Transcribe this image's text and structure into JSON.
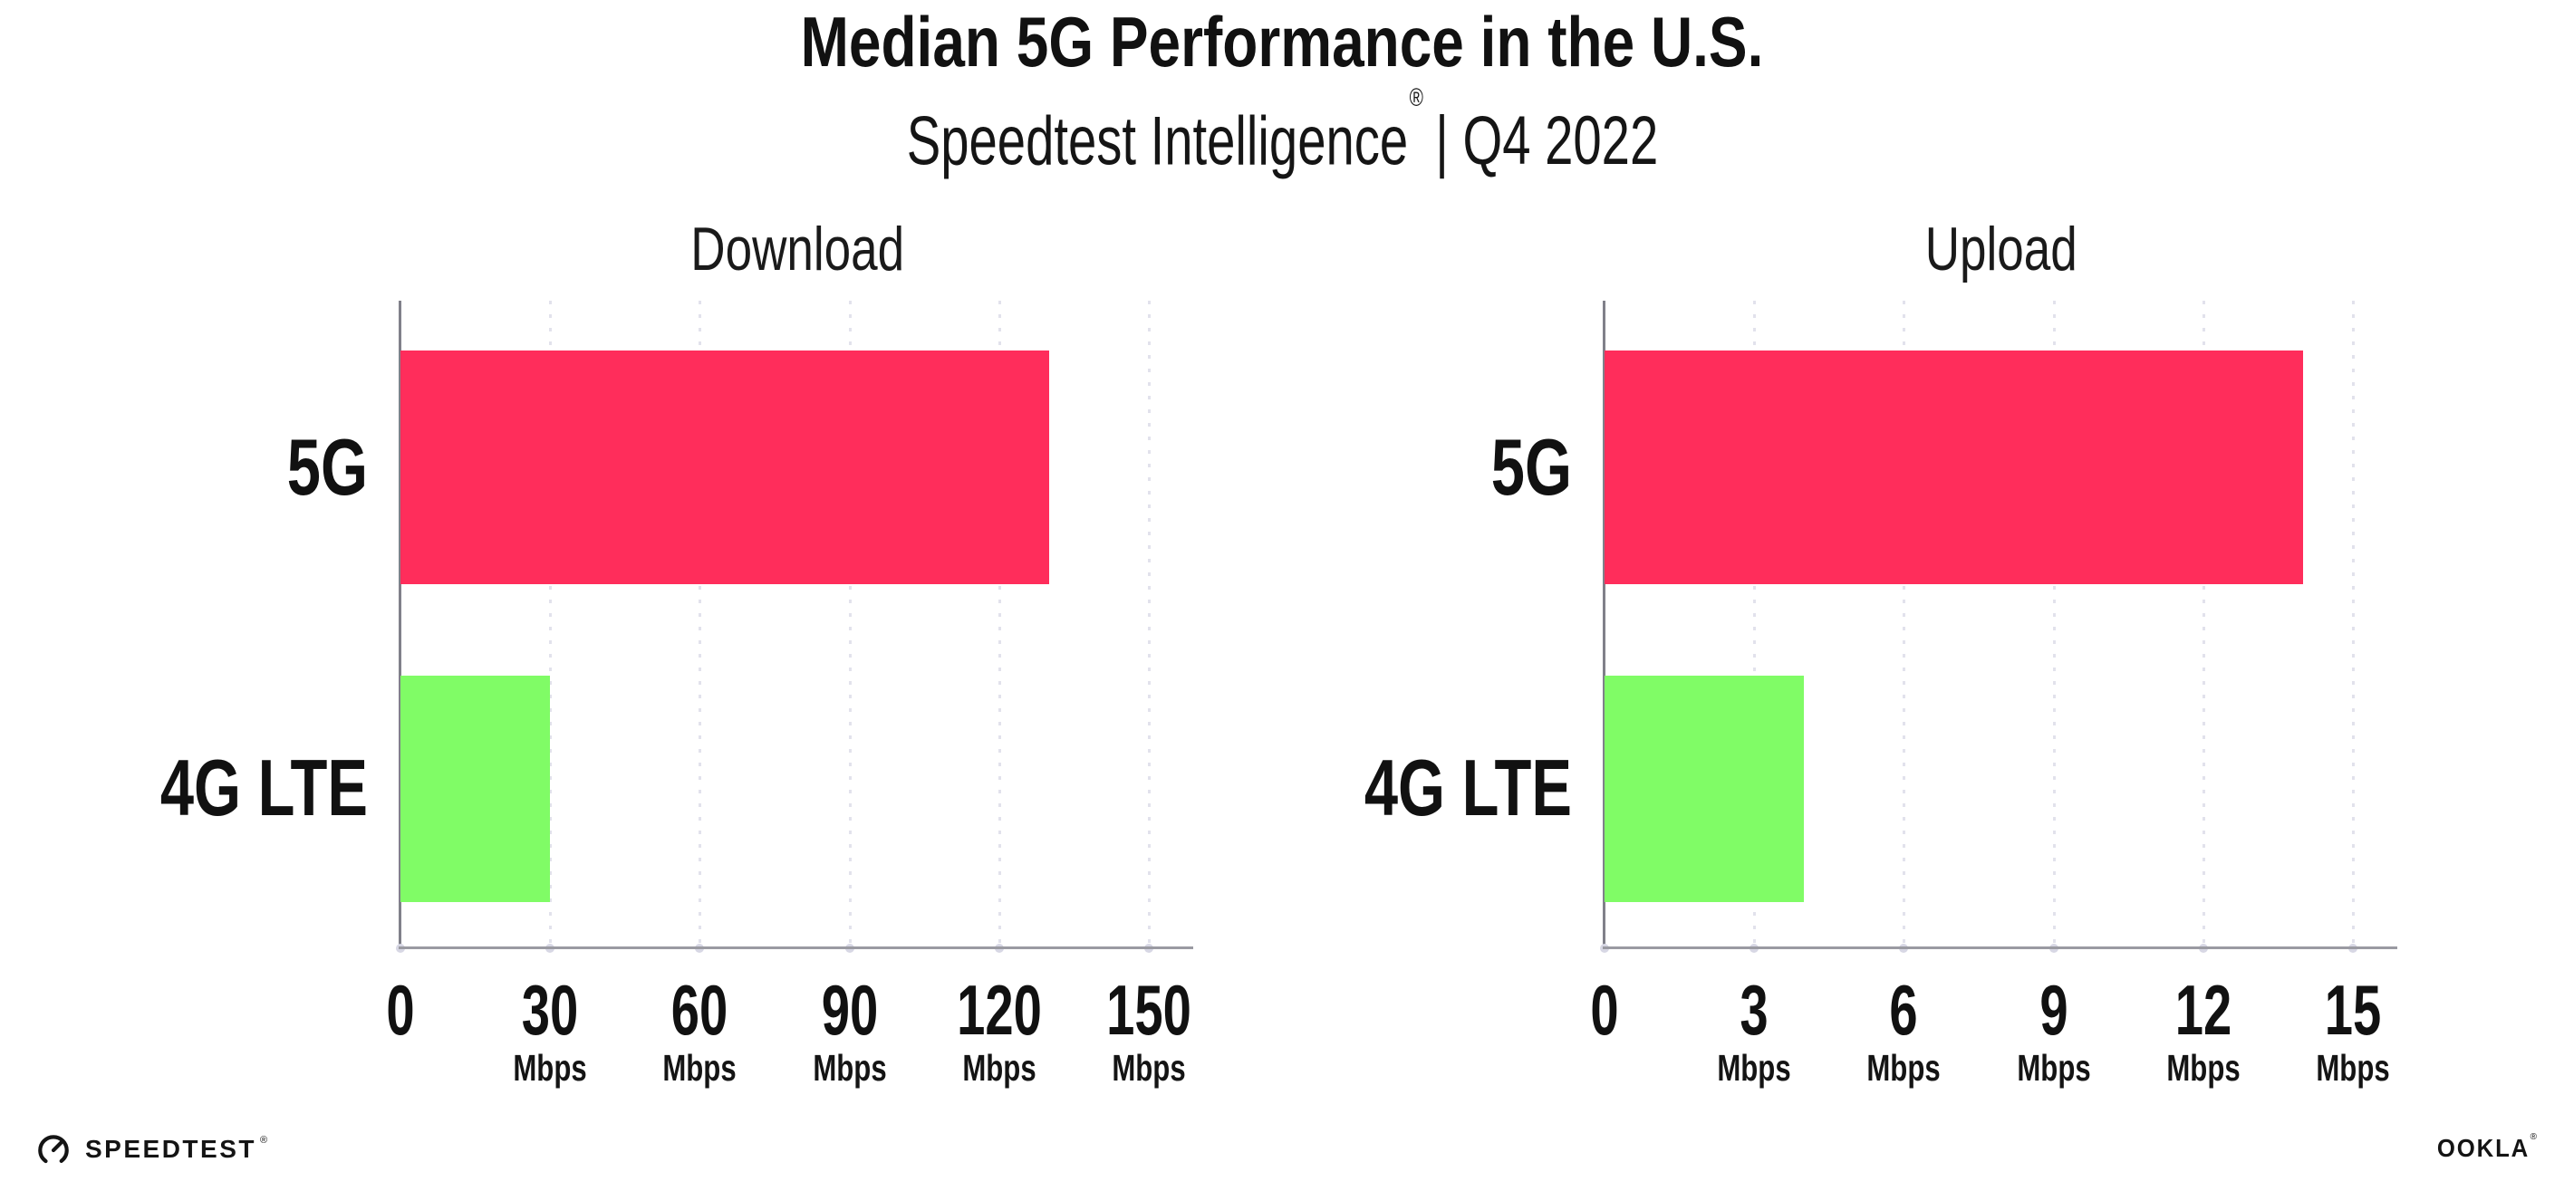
{
  "header": {
    "title": "Median 5G Performance in the U.S.",
    "subtitle_brand": "Speedtest Intelligence",
    "subtitle_mark": "®",
    "subtitle_rest": "| Q4 2022"
  },
  "chart_data": [
    {
      "type": "bar",
      "orientation": "horizontal",
      "title": "Download",
      "categories": [
        "5G",
        "4G LTE"
      ],
      "values": [
        130,
        30
      ],
      "unit": "Mbps",
      "xlabel": "",
      "ylabel": "",
      "xlim": [
        0,
        150
      ],
      "ticks": [
        0,
        30,
        60,
        90,
        120,
        150
      ],
      "bar_colors": [
        "#FF2D5B",
        "#80FC66"
      ],
      "grid": "dotted-vertical",
      "legend": "none"
    },
    {
      "type": "bar",
      "orientation": "horizontal",
      "title": "Upload",
      "categories": [
        "5G",
        "4G LTE"
      ],
      "values": [
        14,
        4
      ],
      "unit": "Mbps",
      "xlabel": "",
      "ylabel": "",
      "xlim": [
        0,
        15
      ],
      "ticks": [
        0,
        3,
        6,
        9,
        12,
        15
      ],
      "bar_colors": [
        "#FF2D5B",
        "#80FC66"
      ],
      "grid": "dotted-vertical",
      "legend": "none"
    }
  ],
  "footer": {
    "speedtest_label": "SPEEDTEST",
    "speedtest_mark": "®",
    "speedtest_icon": "speedtest-gauge-icon",
    "ookla_label": "OOKLA",
    "ookla_mark": "®"
  },
  "colors": {
    "bar_5g": "#FF2D5B",
    "bar_4g_lte": "#80FC66",
    "axis": "#9A9AA2",
    "gridline": "#E2E2EC",
    "text": "#111111"
  }
}
